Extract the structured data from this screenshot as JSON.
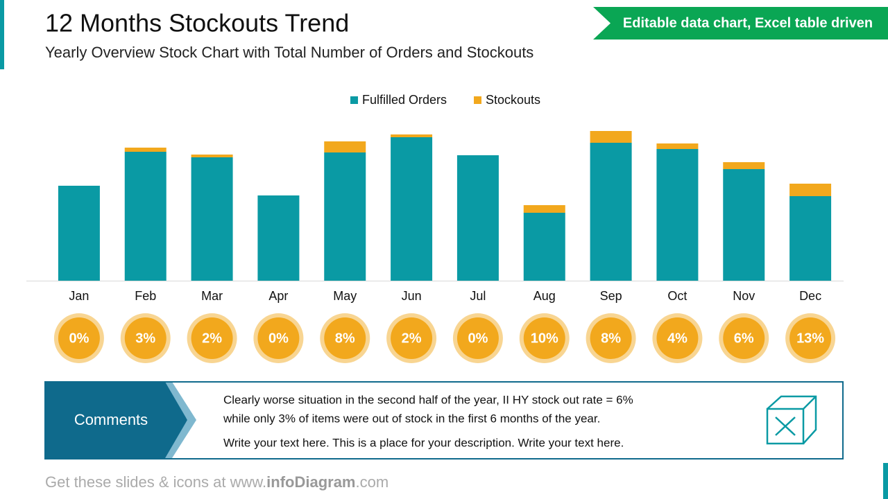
{
  "header": {
    "title": "12 Months Stockouts Trend",
    "subtitle": "Yearly Overview Stock Chart with Total Number of Orders and Stockouts",
    "badge": "Editable data chart, Excel table driven"
  },
  "chart_data": {
    "type": "bar",
    "stacked": true,
    "categories": [
      "Jan",
      "Feb",
      "Mar",
      "Apr",
      "May",
      "Jun",
      "Jul",
      "Aug",
      "Sep",
      "Oct",
      "Nov",
      "Dec"
    ],
    "series": [
      {
        "name": "Fulfilled Orders",
        "color": "#0a9aa4",
        "values": [
          137,
          186,
          178,
          123,
          185,
          207,
          181,
          98,
          199,
          190,
          161,
          122
        ]
      },
      {
        "name": "Stockouts",
        "color": "#f2a81d",
        "values": [
          0,
          6,
          4,
          0,
          16,
          4,
          0,
          11,
          17,
          8,
          10,
          18
        ]
      }
    ],
    "ylim": [
      0,
      220
    ],
    "rates": [
      0,
      3,
      2,
      0,
      8,
      2,
      0,
      10,
      8,
      4,
      6,
      13
    ],
    "rate_labels": [
      "0%",
      "3%",
      "2%",
      "0%",
      "8%",
      "2%",
      "0%",
      "10%",
      "8%",
      "4%",
      "6%",
      "13%"
    ],
    "legend": "top"
  },
  "comments": {
    "label": "Comments",
    "lines": [
      "Clearly worse situation in the second half of the year, II HY stock out rate = 6%",
      "while only 3% of items were out of stock in the first 6 months of the year.",
      "Write your text here. This is a place for your description. Write your text here."
    ]
  },
  "footer": {
    "prefix": "Get these slides & icons at www.",
    "brand": "infoDiagram",
    "suffix": ".com"
  }
}
